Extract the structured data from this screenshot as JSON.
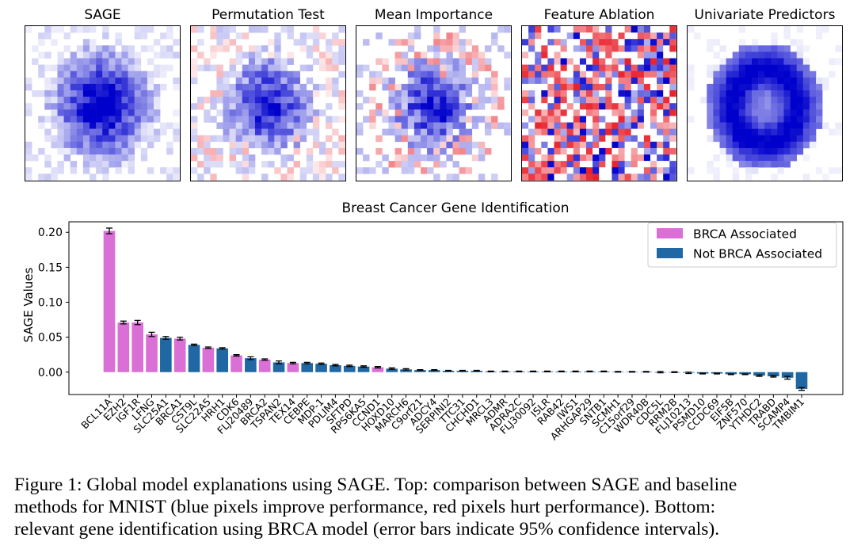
{
  "panels": [
    {
      "title": "SAGE",
      "pattern": "smooth-blue"
    },
    {
      "title": "Permutation Test",
      "pattern": "blue-light-red"
    },
    {
      "title": "Mean Importance",
      "pattern": "blue-red-mixed"
    },
    {
      "title": "Feature Ablation",
      "pattern": "random-red-blue"
    },
    {
      "title": "Univariate Predictors",
      "pattern": "smooth-blue-ring"
    }
  ],
  "colors": {
    "brca": "#da70d6",
    "not_brca": "#1f68a3",
    "pos_pixel": "#0000cc",
    "neg_pixel": "#e8202a"
  },
  "chart_data": {
    "type": "bar",
    "title": "Breast Cancer Gene Identification",
    "ylabel": "SAGE Values",
    "xlabel": "",
    "ylim": [
      -0.032,
      0.215
    ],
    "yticks": [
      "0.20",
      "0.15",
      "0.10",
      "0.05",
      "0.00"
    ],
    "grid": false,
    "legend": {
      "placement": "top-right",
      "entries": [
        "BRCA Associated",
        "Not BRCA Associated"
      ]
    },
    "categories": [
      "BCL11A",
      "EZH2",
      "IGF1R",
      "LFNG",
      "SLC25A1",
      "BRCA1",
      "CST9L",
      "SLC22A5",
      "HRH1",
      "CDK6",
      "FLJ20489",
      "BRCA2",
      "TSPAN2",
      "TEX14",
      "CEBPE",
      "MDP-1",
      "PDLIM4",
      "SFTPD",
      "RPS6KA5",
      "CCND1",
      "HOXD10",
      "MARCH6",
      "C9orf21",
      "ADCY4",
      "SERPINI2",
      "TTC31",
      "CHCHD1",
      "MRCL3",
      "ADMR",
      "ADRA2C",
      "FLJ30092",
      "ISLR",
      "RAB42",
      "IWS1",
      "ARHGAP29",
      "SNTB1",
      "SCMH1",
      "C15orf29",
      "WDR40B",
      "CDC5L",
      "RRM2B",
      "FLJ10213",
      "PSMD10",
      "CCDC69",
      "EIF5B",
      "ZNF570",
      "YTHDC2",
      "TRABD",
      "SCAMP4",
      "TMBIM1"
    ],
    "values": [
      0.202,
      0.071,
      0.071,
      0.054,
      0.049,
      0.048,
      0.039,
      0.035,
      0.034,
      0.024,
      0.02,
      0.018,
      0.014,
      0.013,
      0.013,
      0.012,
      0.01,
      0.009,
      0.008,
      0.007,
      0.005,
      0.004,
      0.003,
      0.003,
      0.002,
      0.002,
      0.002,
      0.001,
      0.001,
      0.001,
      0.001,
      0.001,
      0.001,
      0.001,
      0.001,
      0.001,
      0.0005,
      0.0005,
      0.0005,
      0.0,
      0.0,
      -0.001,
      -0.002,
      -0.002,
      -0.003,
      -0.003,
      -0.005,
      -0.006,
      -0.008,
      -0.024
    ],
    "errors": [
      0.004,
      0.002,
      0.003,
      0.003,
      0.002,
      0.002,
      0.001,
      0.001,
      0.001,
      0.001,
      0.002,
      0.001,
      0.002,
      0.001,
      0.001,
      0.001,
      0.001,
      0.001,
      0.001,
      0.001,
      0.001,
      0.001,
      0.0005,
      0.0005,
      0.0005,
      0.0005,
      0.0005,
      0.0005,
      0.0005,
      0.0005,
      0.0005,
      0.0005,
      0.0005,
      0.0005,
      0.0005,
      0.0005,
      0.0005,
      0.0005,
      0.0005,
      0.001,
      0.0005,
      0.001,
      0.0005,
      0.0005,
      0.0005,
      0.0005,
      0.001,
      0.001,
      0.002,
      0.002
    ],
    "brca_associated": [
      true,
      true,
      true,
      true,
      false,
      true,
      false,
      true,
      false,
      true,
      false,
      true,
      false,
      true,
      false,
      false,
      false,
      false,
      false,
      true,
      false,
      false,
      false,
      false,
      false,
      false,
      false,
      false,
      false,
      false,
      false,
      false,
      false,
      false,
      false,
      false,
      false,
      false,
      false,
      false,
      false,
      false,
      false,
      false,
      false,
      false,
      false,
      false,
      false,
      false
    ]
  },
  "caption": {
    "line1": "Figure 1: Global model explanations using SAGE. Top: comparison between SAGE and baseline",
    "line2": "methods for MNIST (blue pixels improve performance, red pixels hurt performance).  Bottom:",
    "line3": "relevant gene identification using BRCA model (error bars indicate 95% confidence intervals)."
  }
}
